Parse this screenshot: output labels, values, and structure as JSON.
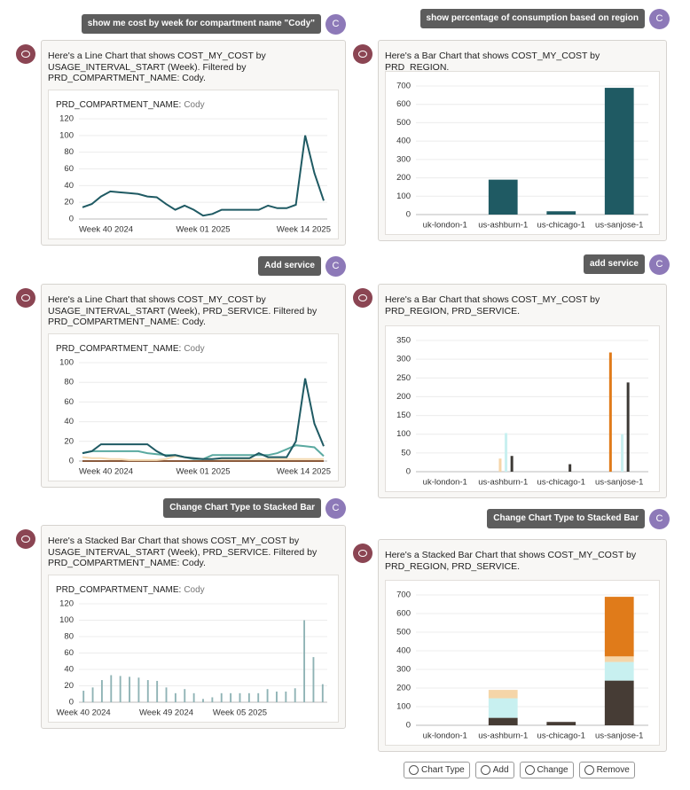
{
  "left": [
    {
      "user": "show me cost by week for compartment name \"Cody\"",
      "avatar": "C",
      "reply": "Here's a Line Chart that shows COST_MY_COST by USAGE_INTERVAL_START (Week). Filtered by PRD_COMPARTMENT_NAME: Cody.",
      "chart": {
        "type": "line",
        "filter_label": "PRD_COMPARTMENT_NAME:",
        "filter_value": "Cody",
        "categories": [
          "Week 40 2024",
          null,
          null,
          null,
          null,
          null,
          null,
          null,
          null,
          null,
          null,
          null,
          null,
          "Week 01 2025",
          null,
          null,
          null,
          null,
          null,
          null,
          null,
          null,
          null,
          null,
          null,
          null,
          "Week 14 2025"
        ],
        "values": [
          14,
          18,
          27,
          33,
          32,
          31,
          30,
          27,
          26,
          18,
          11,
          16,
          11,
          4,
          6,
          11,
          11,
          11,
          11,
          11,
          16,
          13,
          13,
          17,
          100,
          55,
          22
        ],
        "color": "#1f5a63",
        "ylim": [
          0,
          120
        ],
        "yticks": [
          0,
          20,
          40,
          60,
          80,
          100,
          120
        ],
        "grid": true
      }
    },
    {
      "user": "Add service",
      "avatar": "C",
      "reply": "Here's a Line Chart that shows COST_MY_COST by USAGE_INTERVAL_START (Week), PRD_SERVICE. Filtered by PRD_COMPARTMENT_NAME: Cody.",
      "chart": {
        "type": "line",
        "filter_label": "PRD_COMPARTMENT_NAME:",
        "filter_value": "Cody",
        "categories": [
          "Week 40 2024",
          null,
          null,
          null,
          null,
          null,
          null,
          null,
          null,
          null,
          null,
          null,
          null,
          "Week 01 2025",
          null,
          null,
          null,
          null,
          null,
          null,
          null,
          null,
          null,
          null,
          null,
          null,
          "Week 14 2025"
        ],
        "series": [
          {
            "color": "#8a5a3c",
            "values": [
              0,
              0,
              0,
              0,
              0,
              0,
              0,
              0,
              0,
              0,
              0,
              0,
              0,
              0,
              0,
              0,
              0,
              0,
              0,
              0,
              0,
              0,
              0,
              0,
              0,
              0,
              0
            ]
          },
          {
            "color": "#f3d9b1",
            "values": [
              4,
              3,
              3,
              2,
              2,
              1,
              1,
              1,
              1,
              2,
              5,
              4,
              3,
              2,
              2,
              2,
              2,
              2,
              2,
              2,
              2,
              2,
              2,
              2,
              2,
              2,
              2
            ]
          },
          {
            "color": "#5aa9a0",
            "values": [
              8,
              10,
              10,
              10,
              10,
              10,
              10,
              8,
              7,
              6,
              6,
              4,
              2,
              2,
              6,
              6,
              6,
              6,
              6,
              6,
              6,
              8,
              12,
              16,
              15,
              14,
              5
            ]
          },
          {
            "color": "#1f5a63",
            "values": [
              8,
              10,
              17,
              17,
              17,
              17,
              17,
              17,
              10,
              5,
              6,
              4,
              3,
              2,
              2,
              3,
              3,
              3,
              3,
              8,
              4,
              4,
              4,
              20,
              84,
              38,
              15
            ]
          }
        ],
        "ylim": [
          0,
          100
        ],
        "yticks": [
          0,
          20,
          40,
          60,
          80,
          100
        ],
        "grid": true
      }
    },
    {
      "user": "Change Chart Type to Stacked Bar",
      "avatar": "C",
      "reply": "Here's a Stacked Bar Chart that shows COST_MY_COST by USAGE_INTERVAL_START (Week), PRD_SERVICE. Filtered by PRD_COMPARTMENT_NAME: Cody.",
      "chart": {
        "type": "stacked_bar",
        "filter_label": "PRD_COMPARTMENT_NAME:",
        "filter_value": "Cody",
        "categories": [
          "Week 40 2024",
          null,
          null,
          null,
          null,
          null,
          null,
          null,
          null,
          "Week 49 2024",
          null,
          null,
          null,
          null,
          null,
          null,
          null,
          "Week 05 2025",
          null,
          null,
          null,
          null,
          null,
          null,
          null,
          null,
          null
        ],
        "values": [
          14,
          18,
          27,
          33,
          32,
          31,
          30,
          27,
          26,
          18,
          11,
          16,
          11,
          4,
          6,
          11,
          11,
          11,
          11,
          11,
          16,
          13,
          13,
          17,
          100,
          55,
          22
        ],
        "color": "#8fb3b5",
        "ylim": [
          0,
          120
        ],
        "yticks": [
          0,
          20,
          40,
          60,
          80,
          100,
          120
        ],
        "grid": true
      }
    }
  ],
  "right": [
    {
      "user": "show percentage of consumption based on region",
      "avatar": "C",
      "reply": "Here's a Bar Chart that shows COST_MY_COST by PRD_REGION.",
      "chart": {
        "type": "bar",
        "categories": [
          "uk-london-1",
          "us-ashburn-1",
          "us-chicago-1",
          "us-sanjose-1"
        ],
        "values": [
          0,
          190,
          18,
          690
        ],
        "color": "#1f5a63",
        "ylim": [
          0,
          700
        ],
        "yticks": [
          0,
          100,
          200,
          300,
          400,
          500,
          600,
          700
        ],
        "grid": true
      }
    },
    {
      "user": "add service",
      "avatar": "C",
      "reply": "Here's a Bar Chart that shows COST_MY_COST by PRD_REGION, PRD_SERVICE.",
      "chart": {
        "type": "bar",
        "categories": [
          "uk-london-1",
          "us-ashburn-1",
          "us-chicago-1",
          "us-sanjose-1"
        ],
        "series": [
          {
            "color": "#e07b1a",
            "values": [
              0,
              0,
              0,
              318
            ]
          },
          {
            "color": "#f5d5a8",
            "values": [
              0,
              35,
              0,
              0
            ]
          },
          {
            "color": "#c8f0f0",
            "values": [
              0,
              103,
              0,
              100
            ]
          },
          {
            "color": "#3d3a36",
            "values": [
              0,
              42,
              20,
              238
            ]
          }
        ],
        "ylim": [
          0,
          350
        ],
        "yticks": [
          0,
          50,
          100,
          150,
          200,
          250,
          300,
          350
        ],
        "grid": true
      }
    },
    {
      "user": "Change Chart Type to Stacked Bar",
      "avatar": "C",
      "reply": "Here's a Stacked Bar Chart that shows COST_MY_COST by PRD_REGION, PRD_SERVICE.",
      "chart": {
        "type": "stacked_bar",
        "categories": [
          "uk-london-1",
          "us-ashburn-1",
          "us-chicago-1",
          "us-sanjose-1"
        ],
        "series": [
          {
            "color": "#463c35",
            "values": [
              0,
              40,
              18,
              240
            ]
          },
          {
            "color": "#c8f0f0",
            "values": [
              0,
              105,
              0,
              100
            ]
          },
          {
            "color": "#f5d5a8",
            "values": [
              0,
              45,
              0,
              30
            ]
          },
          {
            "color": "#e07b1a",
            "values": [
              0,
              0,
              0,
              320
            ]
          }
        ],
        "ylim": [
          0,
          700
        ],
        "yticks": [
          0,
          100,
          200,
          300,
          400,
          500,
          600,
          700
        ],
        "grid": true
      }
    }
  ],
  "toolbar": [
    "Chart Type",
    "Add",
    "Change",
    "Remove"
  ]
}
